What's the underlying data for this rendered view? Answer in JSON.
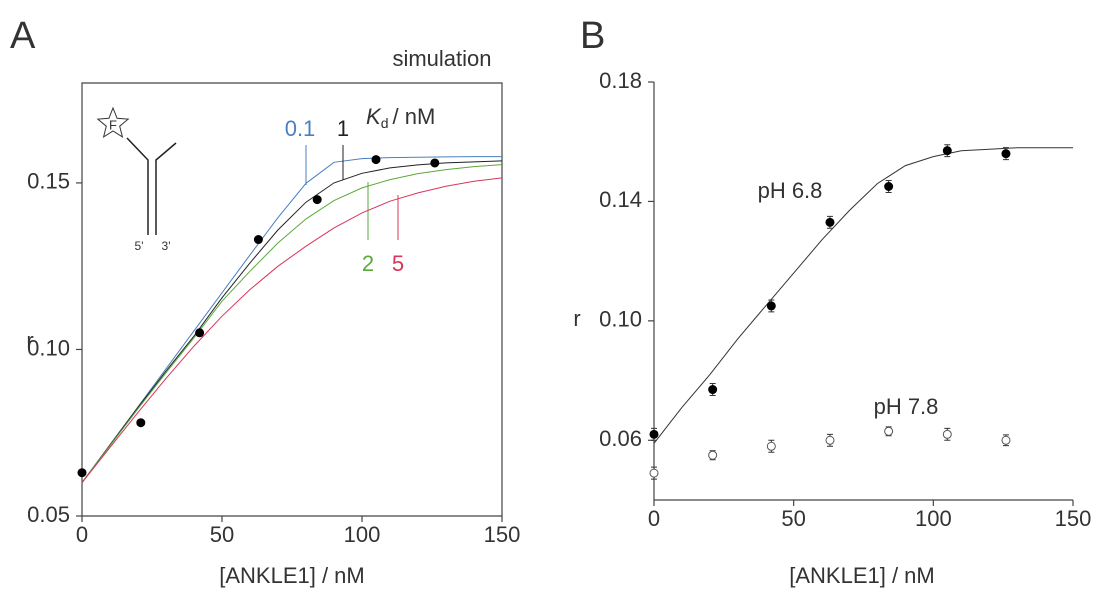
{
  "chart_data": [
    {
      "type": "line",
      "panel": "A",
      "title": "simulation",
      "xlabel": "[ANKLE1] / nM",
      "ylabel": "r",
      "xlim": [
        0,
        150
      ],
      "ylim": [
        0.05,
        0.18
      ],
      "xticks": [
        0,
        50,
        100,
        150
      ],
      "yticks": [
        0.05,
        {
          "value": 0.1,
          "label": "0.10"
        },
        0.15
      ],
      "frame": true,
      "legend_title": {
        "symbol": "K",
        "subscript": "d",
        "unit": "/ nM"
      },
      "inset": {
        "label": "F",
        "ends": [
          "5'",
          "3'"
        ]
      },
      "series": [
        {
          "name": "0.1",
          "style": "line",
          "color": "#4a7fc0",
          "x": [
            0,
            10,
            20,
            30,
            40,
            50,
            60,
            70,
            80,
            90,
            100,
            110,
            120,
            130,
            140,
            150
          ],
          "values": [
            0.06,
            0.0714,
            0.0828,
            0.0942,
            0.1056,
            0.117,
            0.1284,
            0.1396,
            0.1499,
            0.1562,
            0.1573,
            0.1576,
            0.1577,
            0.1578,
            0.1579,
            0.1579
          ]
        },
        {
          "name": "1",
          "style": "line",
          "color": "#222222",
          "x": [
            0,
            10,
            20,
            30,
            40,
            50,
            60,
            70,
            80,
            90,
            100,
            110,
            120,
            130,
            140,
            150
          ],
          "values": [
            0.06,
            0.0713,
            0.0826,
            0.0935,
            0.104,
            0.1155,
            0.126,
            0.1359,
            0.1442,
            0.15,
            0.1529,
            0.1545,
            0.1554,
            0.156,
            0.1563,
            0.1566
          ]
        },
        {
          "name": "2",
          "style": "line",
          "color": "#5aaa3c",
          "x": [
            0,
            10,
            20,
            30,
            40,
            50,
            60,
            70,
            80,
            90,
            100,
            110,
            120,
            130,
            140,
            150
          ],
          "values": [
            0.06,
            0.0711,
            0.0822,
            0.093,
            0.1035,
            0.1145,
            0.1235,
            0.132,
            0.1392,
            0.1447,
            0.1485,
            0.151,
            0.1528,
            0.154,
            0.1549,
            0.1555
          ]
        },
        {
          "name": "5",
          "style": "line",
          "color": "#d8365a",
          "x": [
            0,
            10,
            20,
            30,
            40,
            50,
            60,
            70,
            80,
            90,
            100,
            110,
            120,
            130,
            140,
            150
          ],
          "values": [
            0.06,
            0.0706,
            0.0811,
            0.0913,
            0.101,
            0.11,
            0.118,
            0.125,
            0.131,
            0.1365,
            0.141,
            0.1445,
            0.147,
            0.149,
            0.1505,
            0.1515
          ]
        },
        {
          "style": "filled",
          "color": "#000000",
          "x": [
            0,
            21,
            42,
            63,
            84,
            105,
            126
          ],
          "values": [
            0.063,
            0.078,
            0.105,
            0.133,
            0.145,
            0.157,
            0.156
          ]
        }
      ]
    },
    {
      "type": "line",
      "panel": "B",
      "xlabel": "[ANKLE1] / nM",
      "ylabel": "r",
      "xlim": [
        0,
        150
      ],
      "ylim": [
        0.04,
        0.18
      ],
      "xticks": [
        0,
        50,
        100,
        150
      ],
      "yticks": [
        0.06,
        {
          "value": 0.1,
          "label": "0.10"
        },
        0.14,
        0.18
      ],
      "frame": false,
      "series": [
        {
          "style": "line",
          "color": "#333333",
          "x": [
            0,
            10,
            20,
            30,
            40,
            50,
            60,
            70,
            80,
            90,
            100,
            110,
            120,
            130,
            140,
            150
          ],
          "values": [
            0.059,
            0.071,
            0.082,
            0.094,
            0.105,
            0.116,
            0.127,
            0.137,
            0.146,
            0.152,
            0.155,
            0.157,
            0.1575,
            0.158,
            0.158,
            0.158
          ]
        },
        {
          "name": "pH 6.8",
          "style": "filled",
          "color": "#000000",
          "x": [
            0,
            21,
            42,
            63,
            84,
            105,
            126
          ],
          "values": [
            0.062,
            0.077,
            0.105,
            0.133,
            0.145,
            0.157,
            0.156
          ],
          "errors": [
            0.002,
            0.002,
            0.002,
            0.002,
            0.002,
            0.002,
            0.002
          ]
        },
        {
          "name": "pH 7.8",
          "style": "open",
          "color": "#555555",
          "x": [
            0,
            21,
            42,
            63,
            84,
            105,
            126
          ],
          "values": [
            0.049,
            0.055,
            0.058,
            0.06,
            0.063,
            0.062,
            0.06
          ],
          "errors": [
            0.002,
            0.0015,
            0.002,
            0.002,
            0.0015,
            0.002,
            0.0018
          ]
        }
      ]
    }
  ]
}
